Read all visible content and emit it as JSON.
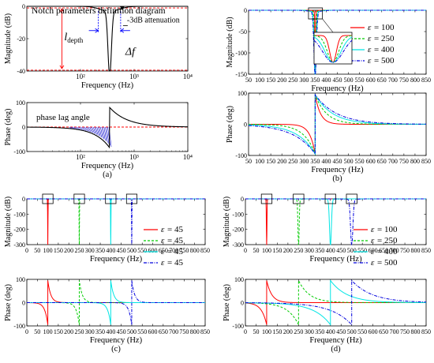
{
  "chart_data": [
    {
      "id": "a-mag",
      "type": "line",
      "title": "Notch parameters definition diagram",
      "xlabel": "Frequency (Hz)",
      "ylabel": "Magnitude (dB)",
      "xscale": "log",
      "xlim": [
        10,
        10000
      ],
      "ylim": [
        -40,
        0
      ],
      "xticks": [
        {
          "v": 100,
          "label": "10²"
        },
        {
          "v": 1000,
          "label": "10³"
        },
        {
          "v": 10000,
          "label": "10⁴"
        }
      ],
      "yticks": [
        -40,
        -20,
        0
      ],
      "notch_center_hz": 350,
      "notch_depth_db": -40,
      "annotations": [
        "l_depth",
        "Δf",
        "-3dB attenuation"
      ],
      "annotation_labels": {
        "depth": "l",
        "depth_sub": "depth",
        "width": "Δf",
        "atten": "-3dB attenuation"
      }
    },
    {
      "id": "a-phase",
      "type": "line",
      "xlabel": "Frequency (Hz)",
      "ylabel": "Phase (deg)",
      "xscale": "log",
      "xlim": [
        10,
        10000
      ],
      "ylim": [
        -100,
        100
      ],
      "xticks": [
        {
          "v": 100,
          "label": "10²"
        },
        {
          "v": 1000,
          "label": "10³"
        },
        {
          "v": 10000,
          "label": "10⁴"
        }
      ],
      "yticks": [
        -100,
        0,
        100
      ],
      "annotation": "phase lag angle",
      "panel_label": "(a)"
    },
    {
      "id": "b-mag",
      "type": "line",
      "xlabel": "Frequency (Hz)",
      "ylabel": "Magnitude (dB)",
      "xlim": [
        50,
        850
      ],
      "ylim": [
        -150,
        0
      ],
      "xticks": [
        50,
        100,
        150,
        200,
        250,
        300,
        350,
        400,
        450,
        500,
        550,
        600,
        650,
        700,
        750,
        800,
        850
      ],
      "yticks": [
        -150,
        -100,
        -50,
        0
      ],
      "grid": false,
      "legend_position": "right",
      "legend_symbol": "ε",
      "series": [
        {
          "name": "= 100",
          "center_hz": 350,
          "epsilon": 100,
          "color": "#ff0000",
          "dash": "solid"
        },
        {
          "name": "= 250",
          "center_hz": 350,
          "epsilon": 250,
          "color": "#00cc00",
          "dash": "dashed"
        },
        {
          "name": "= 400",
          "center_hz": 350,
          "epsilon": 400,
          "color": "#00e5e5",
          "dash": "solid"
        },
        {
          "name": "= 500",
          "center_hz": 350,
          "epsilon": 500,
          "color": "#0000dd",
          "dash": "dashdot"
        }
      ],
      "inset": "zoom near 350 Hz"
    },
    {
      "id": "b-phase",
      "type": "line",
      "xlabel": "Frequency (Hz)",
      "ylabel": "Phase (deg)",
      "xlim": [
        50,
        850
      ],
      "ylim": [
        -100,
        100
      ],
      "xticks": [
        50,
        100,
        150,
        200,
        250,
        300,
        350,
        400,
        450,
        500,
        550,
        600,
        650,
        700,
        750,
        800,
        850
      ],
      "yticks": [
        -100,
        0,
        100
      ],
      "panel_label": "(b)"
    },
    {
      "id": "c-mag",
      "type": "line",
      "xlabel": "Frequency (Hz)",
      "ylabel": "Magnitude (dB)",
      "xlim": [
        0,
        850
      ],
      "ylim": [
        -300,
        0
      ],
      "xticks": [
        0,
        50,
        100,
        150,
        200,
        250,
        300,
        350,
        400,
        450,
        500,
        550,
        600,
        650,
        700,
        750,
        800,
        850
      ],
      "yticks": [
        -300,
        -200,
        -100,
        0
      ],
      "legend_position": "right",
      "legend_symbol": "ε",
      "series": [
        {
          "name": "= 45",
          "center_hz": 100,
          "epsilon": 45,
          "color": "#ff0000",
          "dash": "solid"
        },
        {
          "name": "= 45",
          "center_hz": 250,
          "epsilon": 45,
          "color": "#00cc00",
          "dash": "dashed"
        },
        {
          "name": "= 45",
          "center_hz": 400,
          "epsilon": 45,
          "color": "#00e5e5",
          "dash": "solid"
        },
        {
          "name": "= 45",
          "center_hz": 500,
          "epsilon": 45,
          "color": "#0000dd",
          "dash": "dashdot"
        }
      ]
    },
    {
      "id": "c-phase",
      "type": "line",
      "xlabel": "Frequency (Hz)",
      "ylabel": "Phase (deg)",
      "xlim": [
        0,
        850
      ],
      "ylim": [
        -100,
        100
      ],
      "xticks": [
        0,
        50,
        100,
        150,
        200,
        250,
        300,
        350,
        400,
        450,
        500,
        550,
        600,
        650,
        700,
        750,
        800,
        850
      ],
      "yticks": [
        -100,
        0,
        100
      ],
      "panel_label": "(c)"
    },
    {
      "id": "d-mag",
      "type": "line",
      "xlabel": "Frequency (Hz)",
      "ylabel": "Magnitude (dB)",
      "xlim": [
        0,
        850
      ],
      "ylim": [
        -300,
        0
      ],
      "xticks": [
        0,
        50,
        100,
        150,
        200,
        250,
        300,
        350,
        400,
        450,
        500,
        550,
        600,
        650,
        700,
        750,
        800,
        850
      ],
      "yticks": [
        -300,
        -200,
        -100,
        0
      ],
      "legend_position": "right",
      "legend_symbol": "ε",
      "series": [
        {
          "name": "= 100",
          "center_hz": 100,
          "epsilon": 100,
          "color": "#ff0000",
          "dash": "solid"
        },
        {
          "name": "= 250",
          "center_hz": 250,
          "epsilon": 250,
          "color": "#00cc00",
          "dash": "dashed"
        },
        {
          "name": "= 400",
          "center_hz": 400,
          "epsilon": 400,
          "color": "#00e5e5",
          "dash": "solid"
        },
        {
          "name": "= 500",
          "center_hz": 500,
          "epsilon": 500,
          "color": "#0000dd",
          "dash": "dashdot"
        }
      ]
    },
    {
      "id": "d-phase",
      "type": "line",
      "xlabel": "Frequency (Hz)",
      "ylabel": "Phase (deg)",
      "xlim": [
        0,
        850
      ],
      "ylim": [
        -100,
        100
      ],
      "xticks": [
        0,
        50,
        100,
        150,
        200,
        250,
        300,
        350,
        400,
        450,
        500,
        550,
        600,
        650,
        700,
        750,
        800,
        850
      ],
      "yticks": [
        -100,
        0,
        100
      ],
      "panel_label": "(d)"
    }
  ]
}
